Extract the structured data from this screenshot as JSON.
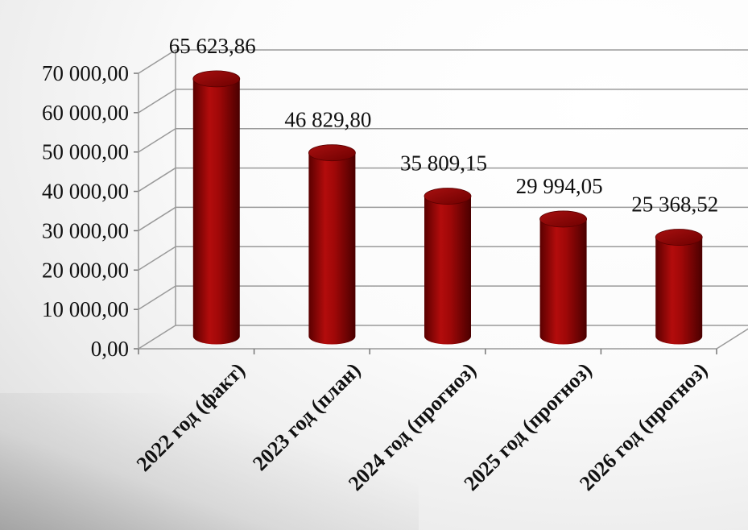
{
  "chart_data": {
    "type": "bar",
    "style": "3d-cylinder",
    "categories": [
      "2022 год (факт)",
      "2023 год (план)",
      "2024 год (прогноз)",
      "2025 год (прогноз)",
      "2026 год (прогноз)"
    ],
    "values": [
      65623.86,
      46829.8,
      35809.15,
      29994.05,
      25368.52
    ],
    "data_labels": [
      "65 623,86",
      "46 829,80",
      "35 809,15",
      "29 994,05",
      "25 368,52"
    ],
    "y_ticks": [
      "0,00",
      "10 000,00",
      "20 000,00",
      "30 000,00",
      "40 000,00",
      "50 000,00",
      "60 000,00",
      "70 000,00"
    ],
    "ylim": [
      0,
      70000
    ],
    "grid": true,
    "legend": "none",
    "bar_color": "#8b0000"
  }
}
